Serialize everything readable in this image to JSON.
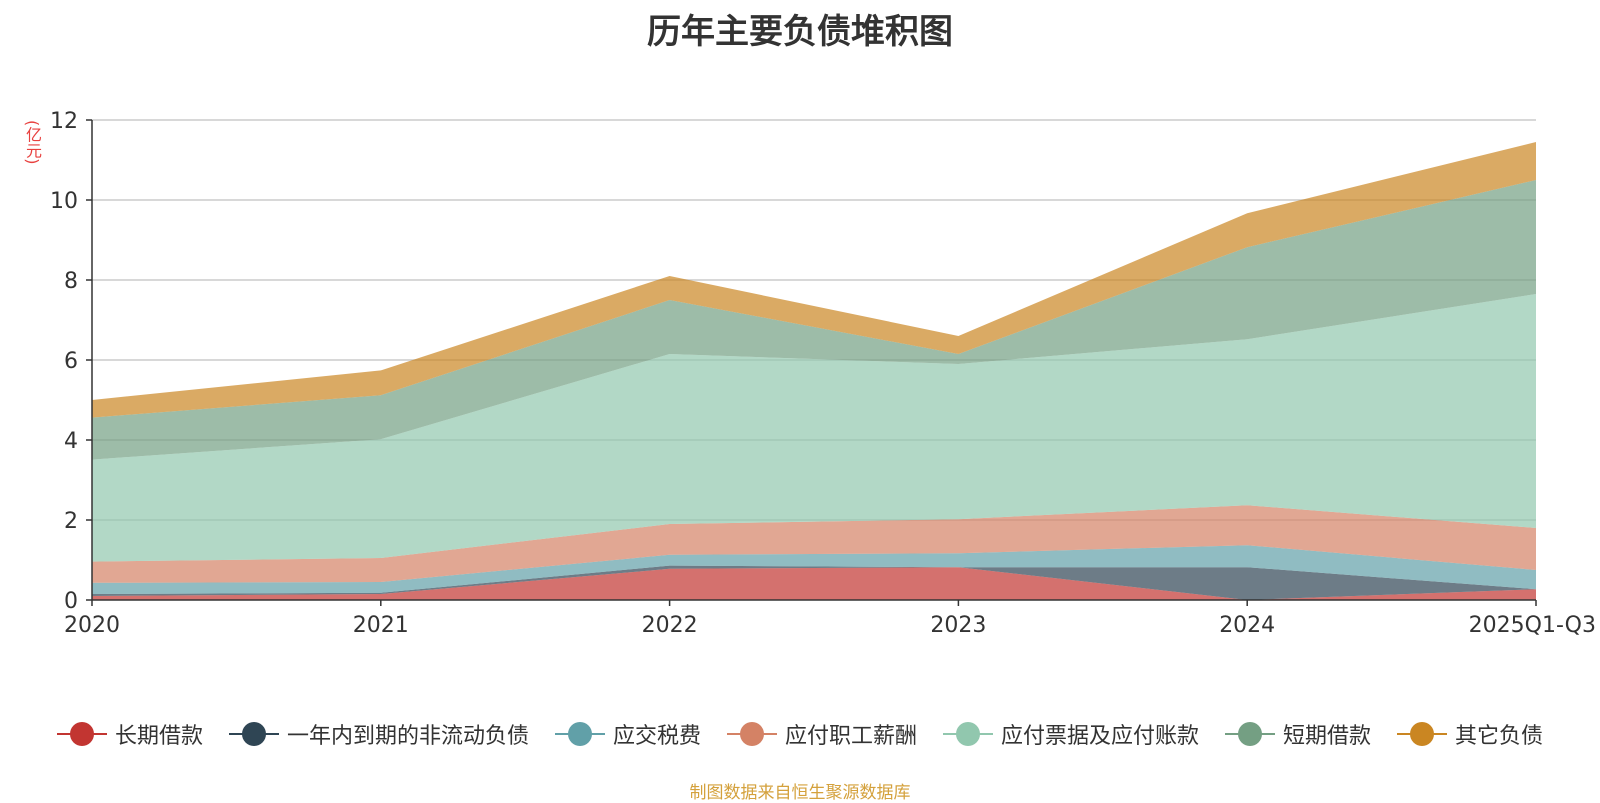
{
  "chart_data": {
    "type": "area",
    "stacked": true,
    "title": "历年主要负债堆积图",
    "unit_label": "(亿元)",
    "categories": [
      "2020",
      "2021",
      "2022",
      "2023",
      "2024",
      "2025Q1-Q3"
    ],
    "ylim": [
      0,
      12
    ],
    "yticks": [
      0,
      2,
      4,
      6,
      8,
      10,
      12
    ],
    "grid": true,
    "legend_position": "bottom",
    "series": [
      {
        "name": "长期借款",
        "color": "#c23531",
        "values": [
          0.1,
          0.15,
          0.78,
          0.82,
          0.0,
          0.27
        ]
      },
      {
        "name": "一年内到期的非流动负债",
        "color": "#2f4554",
        "values": [
          0.05,
          0.03,
          0.08,
          0.0,
          0.82,
          0.0
        ]
      },
      {
        "name": "应交税费",
        "color": "#61a0a8",
        "values": [
          0.28,
          0.27,
          0.27,
          0.35,
          0.55,
          0.48
        ]
      },
      {
        "name": "应付职工薪酬",
        "color": "#d48265",
        "values": [
          0.53,
          0.6,
          0.77,
          0.85,
          1.0,
          1.05
        ]
      },
      {
        "name": "应付票据及应付账款",
        "color": "#91c7ae",
        "values": [
          2.55,
          2.97,
          4.25,
          3.88,
          4.15,
          5.85
        ]
      },
      {
        "name": "短期借款",
        "color": "#749f83",
        "values": [
          1.05,
          1.1,
          1.35,
          0.25,
          2.3,
          2.85
        ]
      },
      {
        "name": "其它负债",
        "color": "#ca8622",
        "values": [
          0.44,
          0.62,
          0.6,
          0.45,
          0.85,
          0.95
        ]
      }
    ]
  },
  "source_note": "制图数据来自恒生聚源数据库"
}
